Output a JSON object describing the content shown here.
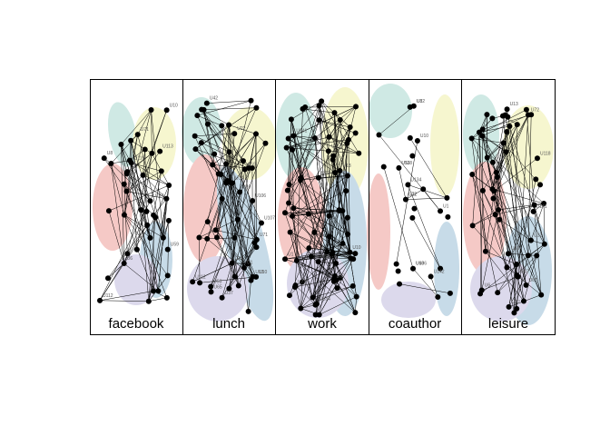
{
  "colors": {
    "teal": "#cfe9e4",
    "yellow": "#f6f6cf",
    "red": "#f5c9c6",
    "blue": "#c7dbe8",
    "lavender": "#dcd9ec",
    "node": "#000000",
    "edge": "#000000",
    "frame": "#000000"
  },
  "panels": [
    {
      "id": "facebook",
      "label": "facebook",
      "node_labels": [
        "U112",
        "U6",
        "U113",
        "U134",
        "U59",
        "U1",
        "U116",
        "U8",
        "U10",
        "U71"
      ]
    },
    {
      "id": "lunch",
      "label": "lunch",
      "node_labels": [
        "U14",
        "U68",
        "U112",
        "U37",
        "U69",
        "U53",
        "U65",
        "U13",
        "U59",
        "U106",
        "U42",
        "U10",
        "U32",
        "U1",
        "U107",
        "U22",
        "U71"
      ]
    },
    {
      "id": "work",
      "label": "work",
      "node_labels": [
        "U112",
        "U141",
        "U37",
        "U69",
        "U72",
        "U53",
        "U134",
        "U13",
        "U106",
        "U8",
        "U10",
        "U1"
      ]
    },
    {
      "id": "coauthor",
      "label": "coauthor",
      "node_labels": [
        "U8",
        "U68",
        "U72",
        "U53",
        "U142",
        "U134",
        "U10",
        "U1",
        "U32",
        "U106",
        "U22",
        "U118"
      ]
    },
    {
      "id": "leisure",
      "label": "leisure",
      "node_labels": [
        "U141",
        "U68",
        "U6",
        "U67",
        "U72",
        "U13",
        "U47",
        "U106",
        "U22",
        "U118",
        "U12"
      ]
    }
  ]
}
